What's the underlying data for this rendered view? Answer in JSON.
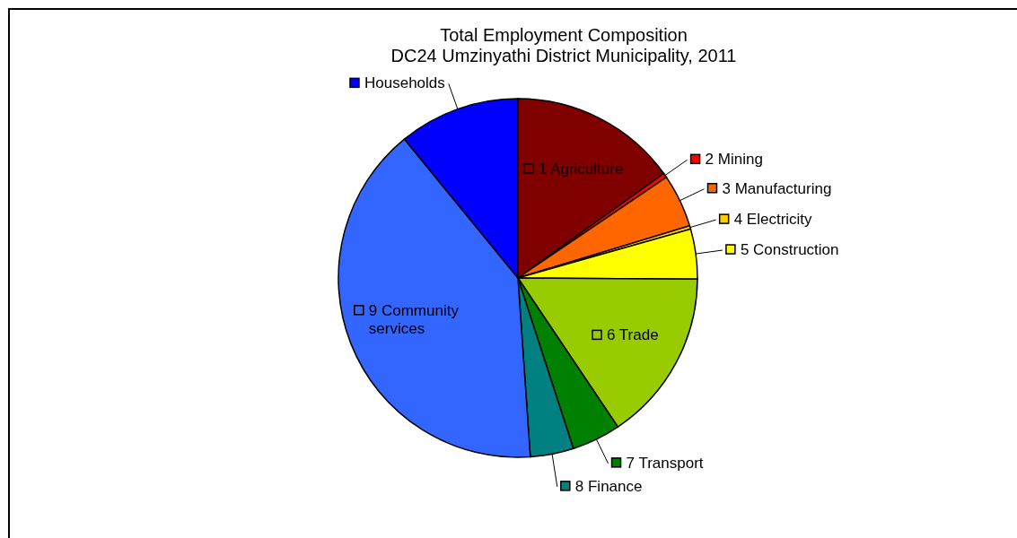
{
  "chart_data": {
    "type": "pie",
    "title": "Total Employment Composition",
    "subtitle": "DC24 Umzinyathi District Municipality, 2011",
    "categories": [
      "1 Agriculture",
      "2 Mining",
      "3 Manufacturing",
      "4 Electricity",
      "5 Construction",
      "6 Trade",
      "7 Transport",
      "8 Finance",
      "9 Community services",
      "Households"
    ],
    "values": [
      15.1,
      0.4,
      4.8,
      0.3,
      4.5,
      15.5,
      4.4,
      3.9,
      40.2,
      10.9
    ],
    "legend": "right",
    "colors": [
      "#800000",
      "#ff0000",
      "#ff6600",
      "#ffcc00",
      "#ffff00",
      "#99cc00",
      "#008000",
      "#008080",
      "#3366ff",
      "#0000ff"
    ]
  }
}
